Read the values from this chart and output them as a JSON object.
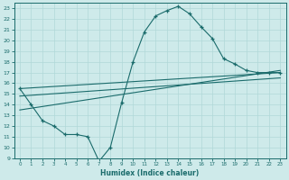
{
  "xlabel": "Humidex (Indice chaleur)",
  "bg_color": "#ceeaea",
  "line_color": "#1a6b6b",
  "grid_color": "#b0d8d8",
  "xlim": [
    -0.5,
    23.5
  ],
  "ylim": [
    9,
    23.5
  ],
  "xticks": [
    0,
    1,
    2,
    3,
    4,
    5,
    6,
    7,
    8,
    9,
    10,
    11,
    12,
    13,
    14,
    15,
    16,
    17,
    18,
    19,
    20,
    21,
    22,
    23
  ],
  "yticks": [
    9,
    10,
    11,
    12,
    13,
    14,
    15,
    16,
    17,
    18,
    19,
    20,
    21,
    22,
    23
  ],
  "line1_x": [
    0,
    1,
    2,
    3,
    4,
    5,
    6,
    7,
    8,
    9,
    10,
    11,
    12,
    13,
    14,
    15,
    16,
    17,
    18,
    19,
    20,
    21,
    22,
    23
  ],
  "line1_y": [
    15.5,
    14.0,
    12.5,
    12.0,
    11.2,
    11.2,
    11.0,
    8.7,
    10.0,
    14.2,
    18.0,
    20.8,
    22.3,
    22.8,
    23.2,
    22.5,
    21.3,
    20.2,
    18.3,
    17.8,
    17.2,
    17.0,
    17.0,
    17.0
  ],
  "line2_x": [
    0,
    23
  ],
  "line2_y": [
    15.5,
    17.0
  ],
  "line3_x": [
    0,
    23
  ],
  "line3_y": [
    14.8,
    16.5
  ],
  "line4_x": [
    0,
    23
  ],
  "line4_y": [
    13.5,
    17.2
  ]
}
